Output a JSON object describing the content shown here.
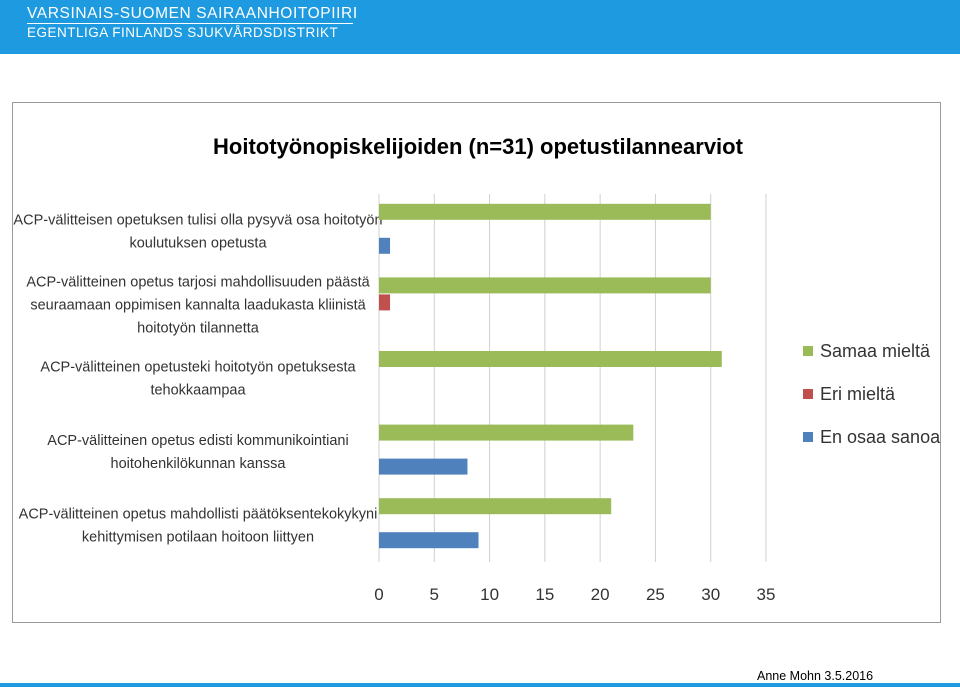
{
  "header": {
    "org_name_fi": "VARSINAIS-SUOMEN SAIRAANHOITOPIIRI",
    "org_name_sv": "EGENTLIGA FINLANDS SJUKVÅRDSDISTRIKT"
  },
  "footer": {
    "author_date": "Anne Mohn 3.5.2016"
  },
  "colors": {
    "header_bar": "#1e9be0",
    "samaa": "#9bbb59",
    "eri": "#c0504d",
    "en_osaa": "#4f81bd"
  },
  "chart_data": {
    "type": "bar",
    "orientation": "horizontal",
    "title": "Hoitotyönopiskelijoiden (n=31) opetustilannearviot",
    "categories": [
      {
        "label": "ACP-välitteisen opetuksen tulisi olla pysyvä osa hoitotyön koulutuksen opetusta",
        "lines": [
          "ACP-välitteisen opetuksen tulisi olla pysyvä osa hoitotyön",
          "koulutuksen opetusta"
        ]
      },
      {
        "label": "ACP-välitteinen opetus tarjosi mahdollisuuden päästä seuraamaan oppimisen kannalta laadukasta kliinistä hoitotyön tilannetta",
        "lines": [
          "ACP-välitteinen opetus tarjosi mahdollisuuden päästä",
          "seuraamaan oppimisen kannalta laadukasta kliinistä",
          "hoitotyön tilannetta"
        ]
      },
      {
        "label": "ACP-välitteinen opetusteki hoitotyön opetuksesta tehokkaampaa",
        "lines": [
          "ACP-välitteinen opetusteki hoitotyön opetuksesta",
          "tehokkaampaa"
        ]
      },
      {
        "label": "ACP-välitteinen opetus edisti kommunikointiani hoitohenkilökunnan kanssa",
        "lines": [
          "ACP-välitteinen opetus edisti kommunikointiani",
          "hoitohenkilökunnan kanssa"
        ]
      },
      {
        "label": "ACP-välitteinen opetus mahdollisti päätöksentekokykyni kehittymisen potilaan hoitoon liittyen",
        "lines": [
          "ACP-välitteinen opetus mahdollisti päätöksentekokykyni",
          "kehittymisen potilaan hoitoon liittyen"
        ]
      }
    ],
    "series": [
      {
        "name": "Samaa mieltä",
        "color": "#9bbb59",
        "values": [
          30,
          30,
          31,
          23,
          21
        ]
      },
      {
        "name": "Eri mieltä",
        "color": "#c0504d",
        "values": [
          0,
          1,
          0,
          0,
          0
        ]
      },
      {
        "name": "En osaa sanoa",
        "color": "#4f81bd",
        "values": [
          1,
          0,
          0,
          8,
          9
        ]
      }
    ],
    "xlim": [
      0,
      35
    ],
    "xticks": [
      0,
      5,
      10,
      15,
      20,
      25,
      30,
      35
    ],
    "grid": "vertical",
    "legend_position": "right"
  }
}
